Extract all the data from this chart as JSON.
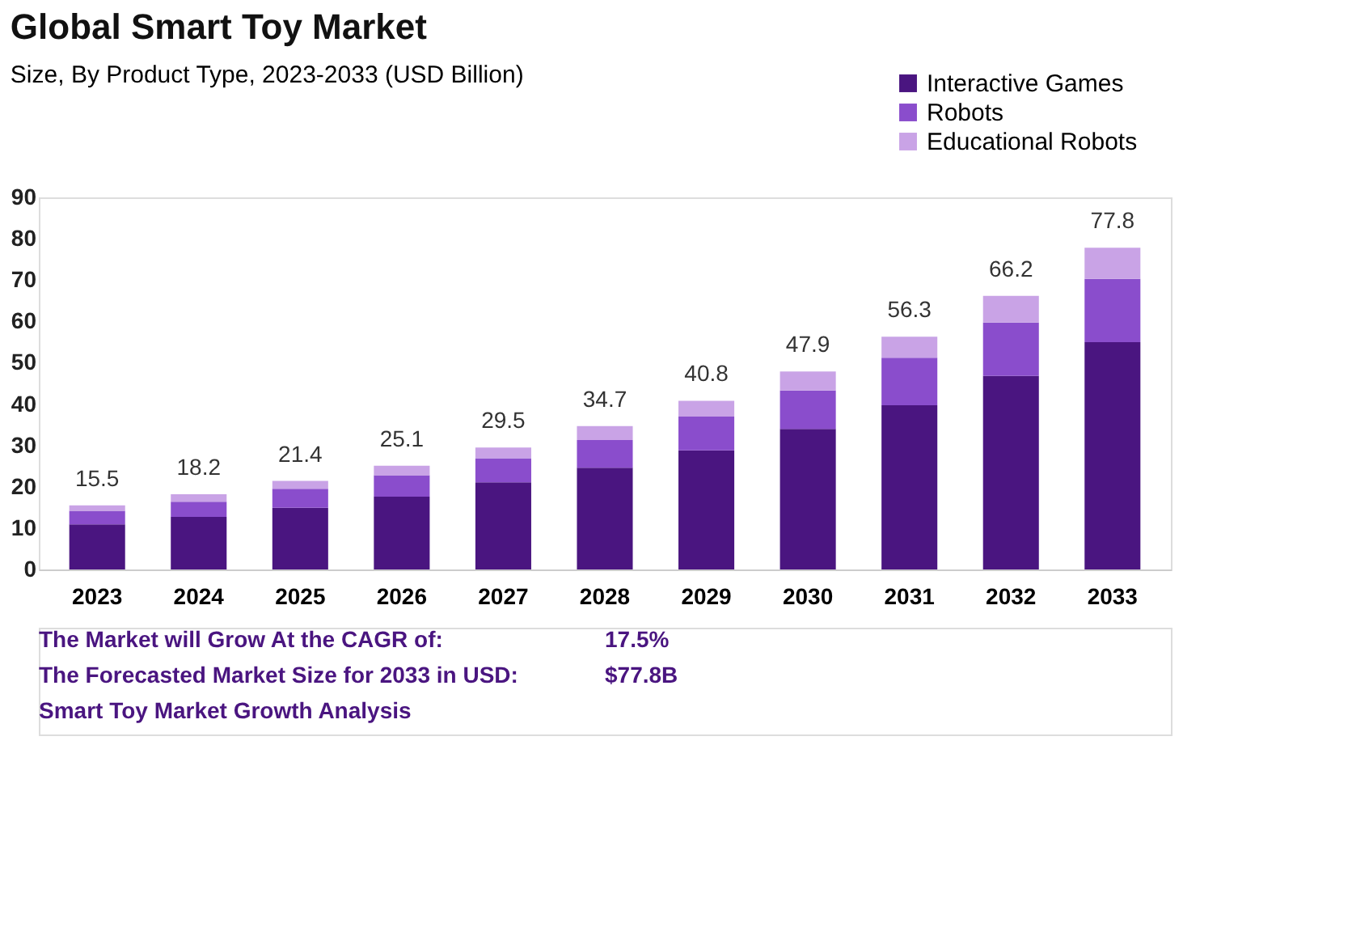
{
  "chart_data": {
    "type": "bar",
    "title": "Global Smart Toy Market",
    "subtitle": "Size, By Product Type, 2023-2033 (USD Billion)",
    "categories": [
      "2023",
      "2024",
      "2025",
      "2026",
      "2027",
      "2028",
      "2029",
      "2030",
      "2031",
      "2032",
      "2033"
    ],
    "stacked": true,
    "series": [
      {
        "name": "Interactive Games",
        "color": "#4a1580",
        "values": [
          10.9,
          12.7,
          14.9,
          17.6,
          21.1,
          24.6,
          28.8,
          34.0,
          39.7,
          46.8,
          55.0
        ]
      },
      {
        "name": "Robots",
        "color": "#8a4dcc",
        "values": [
          3.3,
          3.7,
          4.6,
          5.2,
          5.8,
          6.7,
          8.2,
          9.3,
          11.5,
          12.9,
          15.3
        ]
      },
      {
        "name": "Educational Robots",
        "color": "#c9a3e6",
        "values": [
          1.3,
          1.8,
          1.9,
          2.3,
          2.6,
          3.4,
          3.8,
          4.6,
          5.1,
          6.5,
          7.5
        ]
      }
    ],
    "totals": [
      "15.5",
      "18.2",
      "21.4",
      "25.1",
      "29.5",
      "34.7",
      "40.8",
      "47.9",
      "56.3",
      "66.2",
      "77.8"
    ],
    "ylim": [
      0,
      90
    ],
    "yticks": [
      0,
      10,
      20,
      30,
      40,
      50,
      60,
      70,
      80,
      90
    ],
    "grid": false,
    "legend": "top right",
    "annotations": [
      "The Market will Grow At the CAGR of:",
      "17.5%",
      "The Forecasted Market Size for 2033 in USD:",
      "$77.8B",
      "Smart Toy Market Growth Analysis"
    ]
  }
}
